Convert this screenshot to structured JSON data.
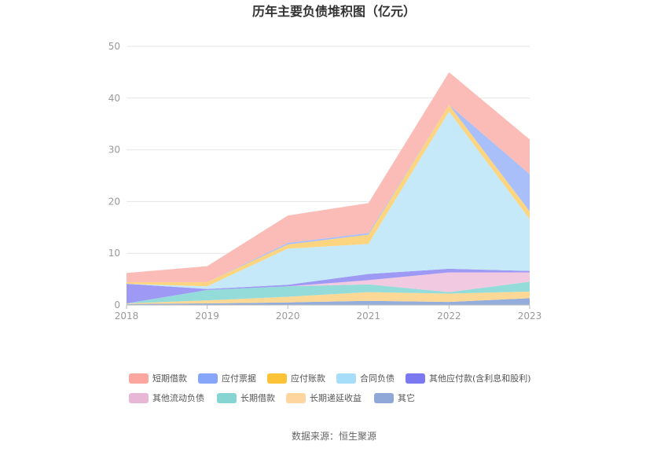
{
  "chart_data": {
    "type": "area",
    "stacked": true,
    "title": "历年主要负债堆积图（亿元）",
    "x": [
      "2018",
      "2019",
      "2020",
      "2021",
      "2022",
      "2023"
    ],
    "ylim": [
      0,
      50
    ],
    "yticks": [
      "0",
      "10",
      "20",
      "30",
      "40",
      "50"
    ],
    "grid": true,
    "legend_position": "bottom",
    "source": "数据来源：恒生聚源",
    "series": [
      {
        "name": "其它",
        "color": "#92acdc",
        "values": [
          0.2,
          0.3,
          0.5,
          0.8,
          0.6,
          1.3
        ]
      },
      {
        "name": "长期递延收益",
        "color": "#fcd897",
        "values": [
          0.1,
          0.6,
          1.1,
          1.7,
          1.6,
          1.3
        ]
      },
      {
        "name": "长期借款",
        "color": "#94dcd9",
        "values": [
          0.0,
          2.0,
          2.0,
          1.5,
          0.3,
          1.9
        ]
      },
      {
        "name": "其他流动负债",
        "color": "#f1c9e1",
        "values": [
          0.0,
          0.0,
          0.0,
          0.8,
          3.8,
          1.8
        ]
      },
      {
        "name": "其他应付款(含利息和股利)",
        "color": "#9d99f5",
        "values": [
          3.8,
          0.2,
          0.3,
          1.2,
          0.7,
          0.3
        ]
      },
      {
        "name": "合同负债",
        "color": "#c5e9f9",
        "values": [
          0.0,
          0.5,
          7.0,
          5.8,
          30.4,
          10.0
        ]
      },
      {
        "name": "应付账款",
        "color": "#fdd47f",
        "values": [
          0.3,
          0.8,
          0.8,
          1.8,
          1.3,
          1.5
        ]
      },
      {
        "name": "应付票据",
        "color": "#a8bff9",
        "values": [
          0.0,
          0.0,
          0.3,
          0.3,
          0.0,
          7.2
        ]
      },
      {
        "name": "短期借款",
        "color": "#fbbcb7",
        "values": [
          1.8,
          3.1,
          5.3,
          5.8,
          6.3,
          6.7
        ]
      }
    ],
    "legend": [
      {
        "name": "短期借款",
        "color": "#fba69e"
      },
      {
        "name": "应付票据",
        "color": "#87a6fa"
      },
      {
        "name": "应付账款",
        "color": "#fcc337"
      },
      {
        "name": "合同负债",
        "color": "#a6ddf8"
      },
      {
        "name": "其他应付款(含利息和股利)",
        "color": "#7c79f0"
      },
      {
        "name": "其他流动负债",
        "color": "#e8b7d6"
      },
      {
        "name": "长期借款",
        "color": "#86d5d2"
      },
      {
        "name": "长期递延收益",
        "color": "#fcd69e"
      },
      {
        "name": "其它",
        "color": "#8fa8d8"
      }
    ]
  }
}
